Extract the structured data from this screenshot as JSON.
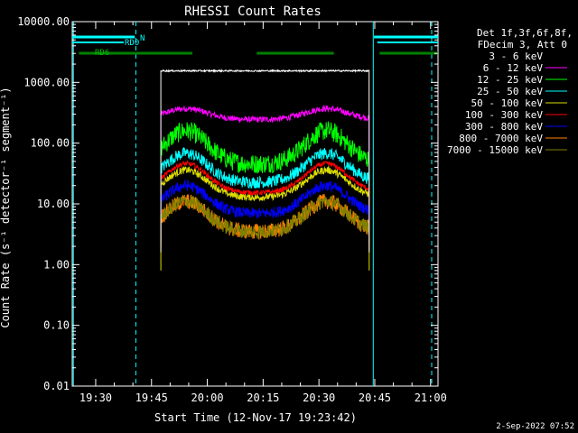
{
  "chart_data": {
    "type": "line",
    "title": "RHESSI Count Rates",
    "xlabel": "Start Time (12-Nov-17 19:23:42)",
    "ylabel": "Count Rate (s⁻¹ detector⁻¹ segment⁻¹)",
    "y_scale": "log",
    "ylim": [
      0.01,
      10000
    ],
    "y_ticks": [
      "0.01",
      "0.10",
      "1.00",
      "10.00",
      "100.00",
      "1000.00",
      "10000.00"
    ],
    "x_ticks": [
      "19:30",
      "19:45",
      "20:00",
      "20:15",
      "20:30",
      "20:45",
      "21:00"
    ],
    "x_range_minutes": [
      1163.7,
      1262
    ],
    "legend_header": [
      "Det 1f,3f,6f,8f,",
      "FDecim 3, Att 0"
    ],
    "series": [
      {
        "name": "3 - 6 keV",
        "color": "#000000",
        "level": 1550
      },
      {
        "name": "6 - 12 keV",
        "color": "#ff00ff",
        "level": 370
      },
      {
        "name": "12 - 25 keV",
        "color": "#00ff00",
        "level": 160
      },
      {
        "name": "25 - 50 keV",
        "color": "#00ffff",
        "level": 68
      },
      {
        "name": "50 - 100 keV",
        "color": "#dddd00",
        "level": 36
      },
      {
        "name": "100 - 300 keV",
        "color": "#ff0000",
        "level": 46
      },
      {
        "name": "300 - 800 keV",
        "color": "#0000ff",
        "level": 20
      },
      {
        "name": "800 - 7000 keV",
        "color": "#ff8000",
        "level": 11
      },
      {
        "name": "7000 - 15000 keV",
        "color": "#808000",
        "level": 11
      }
    ],
    "bars": {
      "N": [
        [
          1163.7,
          1180.5
        ],
        [
          1244.8,
          1262
        ]
      ],
      "RD0": [
        [
          1163.7,
          1177.5
        ],
        [
          1245.7,
          1262
        ]
      ],
      "RD6": [
        [
          1165.5,
          1196.0
        ],
        [
          1213.3,
          1234.0
        ],
        [
          1246.3,
          1262
        ]
      ]
    },
    "bar_labels": [
      "N",
      "RD0",
      "RD6"
    ],
    "vlines_solid": [
      1164.0,
      1244.6
    ],
    "vlines_dashed": [
      1180.8,
      1260.3
    ]
  },
  "footer": {
    "date": "2-Sep-2022 07:52"
  }
}
